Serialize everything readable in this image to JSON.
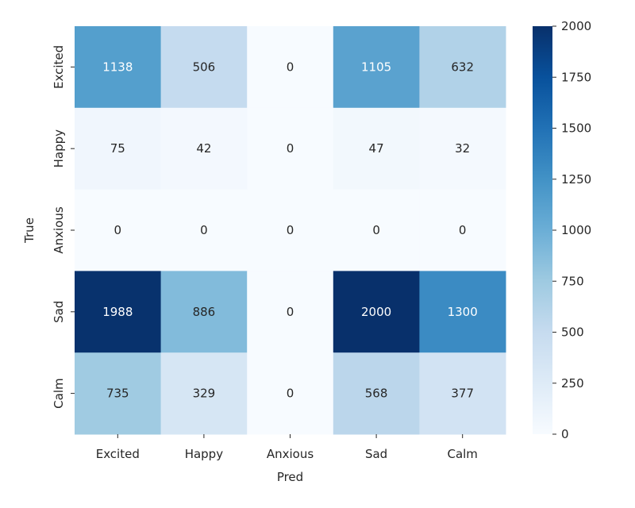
{
  "chart_data": {
    "type": "heatmap",
    "title": "",
    "xlabel": "Pred",
    "ylabel": "True",
    "x_categories": [
      "Excited",
      "Happy",
      "Anxious",
      "Sad",
      "Calm"
    ],
    "y_categories": [
      "Excited",
      "Happy",
      "Anxious",
      "Sad",
      "Calm"
    ],
    "values": [
      [
        1138,
        506,
        0,
        1105,
        632
      ],
      [
        75,
        42,
        0,
        47,
        32
      ],
      [
        0,
        0,
        0,
        0,
        0
      ],
      [
        1988,
        886,
        0,
        2000,
        1300
      ],
      [
        735,
        329,
        0,
        568,
        377
      ]
    ],
    "colorscale": "Blues",
    "vmin": 0,
    "vmax": 2000,
    "colorbar_ticks": [
      0,
      250,
      500,
      750,
      1000,
      1250,
      1500,
      1750,
      2000
    ],
    "colorbar_tick_labels": [
      "0",
      "250",
      "500",
      "750",
      "1000",
      "1250",
      "1500",
      "1750",
      "2000"
    ],
    "annotation_light_color": "#ffffff",
    "annotation_dark_color": "#262626",
    "grid": false,
    "legend": "colorbar-right"
  }
}
